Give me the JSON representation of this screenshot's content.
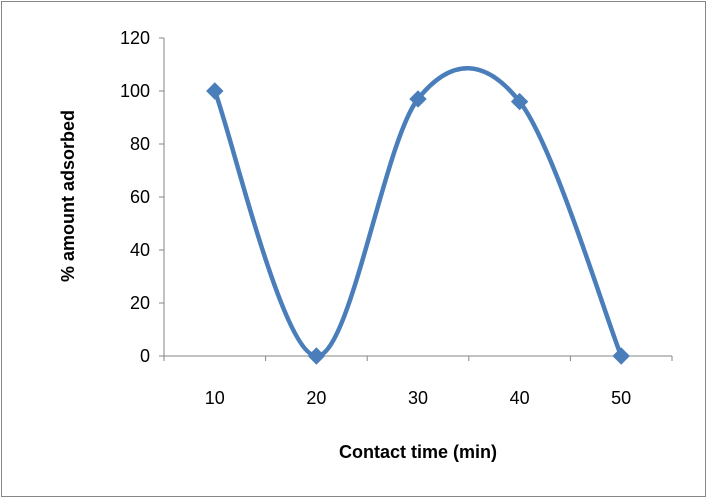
{
  "chart_data": {
    "type": "line",
    "smooth": true,
    "title": "",
    "xlabel": "Contact time (min)",
    "ylabel": "% amount adsorbed",
    "categories": [
      "10",
      "20",
      "30",
      "40",
      "50"
    ],
    "series": [
      {
        "values": [
          100,
          0,
          97,
          96,
          0
        ],
        "marker": "diamond"
      }
    ],
    "ylim": [
      0,
      120
    ],
    "yticks": [
      0,
      20,
      40,
      60,
      80,
      100,
      120
    ],
    "grid": false,
    "legend": "none",
    "colors": {
      "line": "#4a7ebb",
      "marker": "#4a7ebb",
      "axis": "#868686",
      "frame": "#868686"
    }
  }
}
